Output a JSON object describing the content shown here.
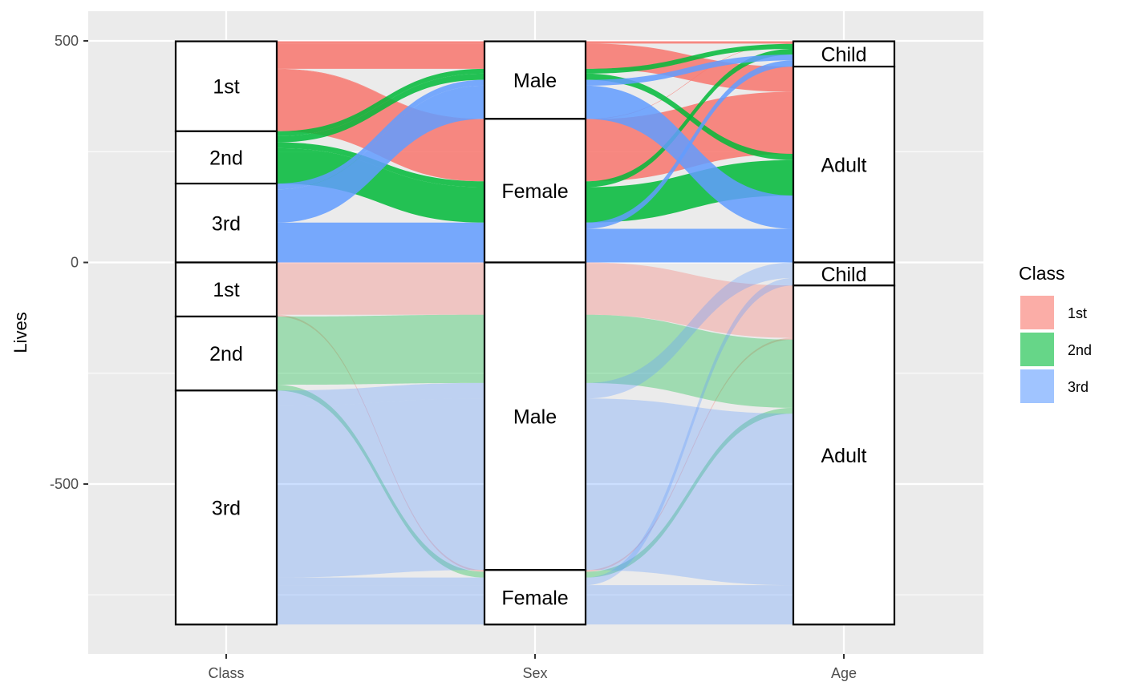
{
  "chart_data": {
    "type": "alluvial",
    "axes": [
      "Class",
      "Sex",
      "Age"
    ],
    "ylabel": "Lives",
    "y_ticks": [
      500,
      0,
      -500
    ],
    "ylim": [
      -860,
      510
    ],
    "legend": {
      "title": "Class",
      "placement": "right",
      "entries": [
        {
          "label": "1st",
          "color": "#F8766D"
        },
        {
          "label": "2nd",
          "color": "#00BA38"
        },
        {
          "label": "3rd",
          "color": "#619CFF"
        }
      ]
    },
    "series_order": [
      "Female",
      "Male"
    ],
    "flows": [
      {
        "id": "s-1-f-a",
        "class": "1st",
        "sex": "Female",
        "age": "Adult",
        "value": 140,
        "sign": 1
      },
      {
        "id": "s-1-f-c",
        "class": "1st",
        "sex": "Female",
        "age": "Child",
        "value": 1,
        "sign": 1
      },
      {
        "id": "s-1-m-a",
        "class": "1st",
        "sex": "Male",
        "age": "Adult",
        "value": 57,
        "sign": 1
      },
      {
        "id": "s-1-m-c",
        "class": "1st",
        "sex": "Male",
        "age": "Child",
        "value": 5,
        "sign": 1
      },
      {
        "id": "s-2-f-a",
        "class": "2nd",
        "sex": "Female",
        "age": "Adult",
        "value": 80,
        "sign": 1
      },
      {
        "id": "s-2-f-c",
        "class": "2nd",
        "sex": "Female",
        "age": "Child",
        "value": 13,
        "sign": 1
      },
      {
        "id": "s-2-m-a",
        "class": "2nd",
        "sex": "Male",
        "age": "Adult",
        "value": 14,
        "sign": 1
      },
      {
        "id": "s-2-m-c",
        "class": "2nd",
        "sex": "Male",
        "age": "Child",
        "value": 11,
        "sign": 1
      },
      {
        "id": "s-3-f-a",
        "class": "3rd",
        "sex": "Female",
        "age": "Adult",
        "value": 76,
        "sign": 1
      },
      {
        "id": "s-3-f-c",
        "class": "3rd",
        "sex": "Female",
        "age": "Child",
        "value": 14,
        "sign": 1
      },
      {
        "id": "s-3-m-a",
        "class": "3rd",
        "sex": "Male",
        "age": "Adult",
        "value": 75,
        "sign": 1
      },
      {
        "id": "s-3-m-c",
        "class": "3rd",
        "sex": "Male",
        "age": "Child",
        "value": 13,
        "sign": 1
      },
      {
        "id": "d-1-f-a",
        "class": "1st",
        "sex": "Female",
        "age": "Adult",
        "value": 4,
        "sign": -1
      },
      {
        "id": "d-1-m-a",
        "class": "1st",
        "sex": "Male",
        "age": "Adult",
        "value": 118,
        "sign": -1
      },
      {
        "id": "d-2-f-a",
        "class": "2nd",
        "sex": "Female",
        "age": "Adult",
        "value": 13,
        "sign": -1
      },
      {
        "id": "d-2-m-a",
        "class": "2nd",
        "sex": "Male",
        "age": "Adult",
        "value": 154,
        "sign": -1
      },
      {
        "id": "d-3-f-a",
        "class": "3rd",
        "sex": "Female",
        "age": "Adult",
        "value": 89,
        "sign": -1
      },
      {
        "id": "d-3-f-c",
        "class": "3rd",
        "sex": "Female",
        "age": "Child",
        "value": 17,
        "sign": -1
      },
      {
        "id": "d-3-m-a",
        "class": "3rd",
        "sex": "Male",
        "age": "Adult",
        "value": 387,
        "sign": -1
      },
      {
        "id": "d-3-m-c",
        "class": "3rd",
        "sex": "Male",
        "age": "Child",
        "value": 35,
        "sign": -1
      }
    ],
    "strata": [
      {
        "axis": "Class",
        "label": "1st",
        "sign": 1
      },
      {
        "axis": "Class",
        "label": "2nd",
        "sign": 1
      },
      {
        "axis": "Class",
        "label": "3rd",
        "sign": 1
      },
      {
        "axis": "Sex",
        "label": "Male",
        "sign": 1
      },
      {
        "axis": "Sex",
        "label": "Female",
        "sign": 1
      },
      {
        "axis": "Age",
        "label": "Child",
        "sign": 1
      },
      {
        "axis": "Age",
        "label": "Adult",
        "sign": 1
      },
      {
        "axis": "Class",
        "label": "1st",
        "sign": -1
      },
      {
        "axis": "Class",
        "label": "2nd",
        "sign": -1
      },
      {
        "axis": "Class",
        "label": "3rd",
        "sign": -1
      },
      {
        "axis": "Sex",
        "label": "Male",
        "sign": -1
      },
      {
        "axis": "Sex",
        "label": "Female",
        "sign": -1
      },
      {
        "axis": "Age",
        "label": "Child",
        "sign": -1
      },
      {
        "axis": "Age",
        "label": "Adult",
        "sign": -1
      }
    ]
  }
}
